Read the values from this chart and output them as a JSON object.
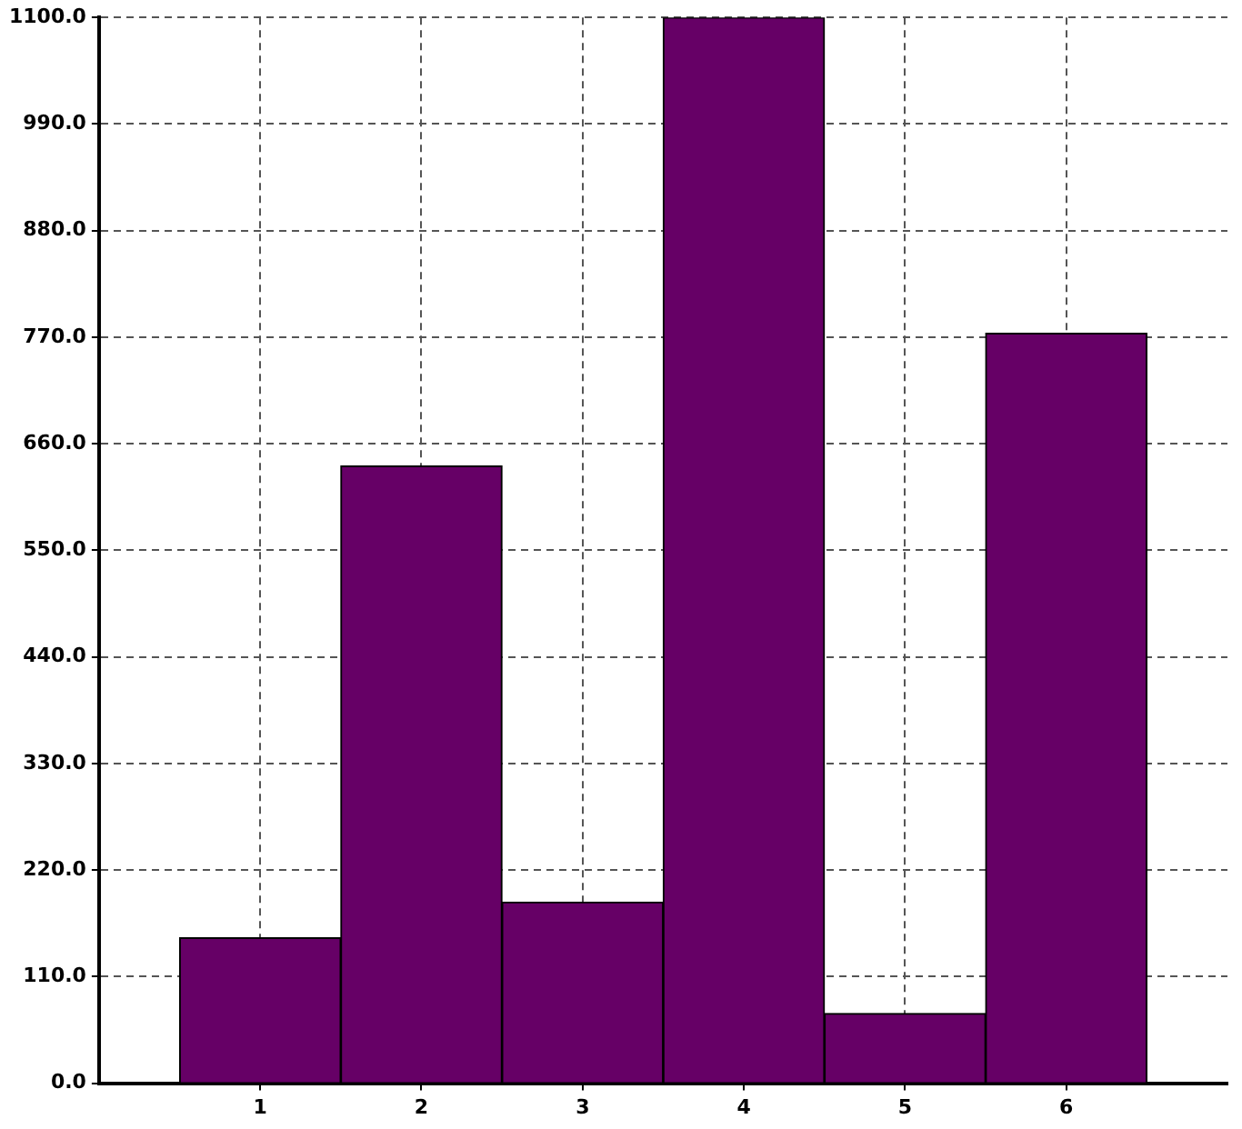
{
  "chart_data": {
    "type": "histogram",
    "bins": [
      0.5,
      1.5,
      2.5,
      3.5,
      4.5,
      5.5,
      6.5
    ],
    "values": [
      150,
      637,
      187,
      1100,
      72,
      774
    ],
    "color": "#660066",
    "xlim": [
      0,
      7
    ],
    "xticks": [
      1,
      2,
      3,
      4,
      5,
      6
    ],
    "ylim": [
      0,
      1100
    ],
    "yticks": [
      {
        "value": 0,
        "label": "0.0"
      },
      {
        "value": 110,
        "label": "110.0"
      },
      {
        "value": 220,
        "label": "220.0"
      },
      {
        "value": 330,
        "label": "330.0"
      },
      {
        "value": 440,
        "label": "440.0"
      },
      {
        "value": 550,
        "label": "550.0"
      },
      {
        "value": 660,
        "label": "660.0"
      },
      {
        "value": 770,
        "label": "770.0"
      },
      {
        "value": 880,
        "label": "880.0"
      },
      {
        "value": 990,
        "label": "990.0"
      },
      {
        "value": 1100,
        "label": "1100.0"
      }
    ],
    "grid": true
  }
}
